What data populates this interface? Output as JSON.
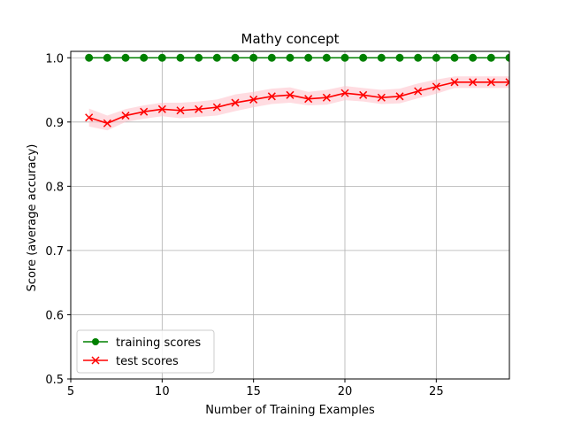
{
  "chart_data": {
    "type": "line",
    "title": "Mathy concept",
    "xlabel": "Number of Training Examples",
    "ylabel": "Score (average accuracy)",
    "xlim": [
      5,
      29
    ],
    "ylim": [
      0.5,
      1.01
    ],
    "xticks": [
      5,
      10,
      15,
      20,
      25
    ],
    "yticks": [
      0.5,
      0.6,
      0.7,
      0.8,
      0.9,
      1.0
    ],
    "yticklabels": [
      "0.5",
      "0.6",
      "0.7",
      "0.8",
      "0.9",
      "1.0"
    ],
    "grid": true,
    "legend_position": "lower-left",
    "x": [
      6,
      7,
      8,
      9,
      10,
      11,
      12,
      13,
      14,
      15,
      16,
      17,
      18,
      19,
      20,
      21,
      22,
      23,
      24,
      25,
      26,
      27,
      28,
      29
    ],
    "series": [
      {
        "name": "training scores",
        "color": "#008000",
        "marker": "circle",
        "values": [
          1.0,
          1.0,
          1.0,
          1.0,
          1.0,
          1.0,
          1.0,
          1.0,
          1.0,
          1.0,
          1.0,
          1.0,
          1.0,
          1.0,
          1.0,
          1.0,
          1.0,
          1.0,
          1.0,
          1.0,
          1.0,
          1.0,
          1.0,
          1.0
        ]
      },
      {
        "name": "test scores",
        "color": "#ff0000",
        "marker": "x",
        "band_color": "#ffc0c8",
        "values": [
          0.907,
          0.898,
          0.91,
          0.916,
          0.92,
          0.918,
          0.92,
          0.923,
          0.93,
          0.935,
          0.94,
          0.942,
          0.936,
          0.938,
          0.945,
          0.942,
          0.938,
          0.94,
          0.948,
          0.955,
          0.962,
          0.962,
          0.962,
          0.962
        ],
        "band_low": [
          0.893,
          0.887,
          0.9,
          0.905,
          0.909,
          0.906,
          0.908,
          0.91,
          0.917,
          0.923,
          0.928,
          0.93,
          0.926,
          0.927,
          0.934,
          0.932,
          0.928,
          0.929,
          0.937,
          0.944,
          0.953,
          0.953,
          0.953,
          0.953
        ],
        "band_high": [
          0.921,
          0.91,
          0.92,
          0.926,
          0.93,
          0.93,
          0.932,
          0.935,
          0.943,
          0.947,
          0.952,
          0.954,
          0.947,
          0.95,
          0.956,
          0.953,
          0.95,
          0.952,
          0.96,
          0.966,
          0.971,
          0.971,
          0.971,
          0.971
        ]
      }
    ]
  }
}
